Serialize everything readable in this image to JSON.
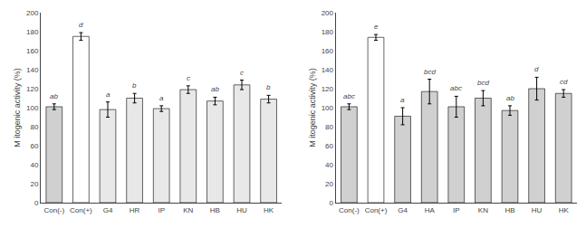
{
  "chart_data": [
    {
      "type": "bar",
      "categories": [
        "Con(-)",
        "Con(+)",
        "G4",
        "HR",
        "IP",
        "KN",
        "HB",
        "HU",
        "HK"
      ],
      "values": [
        101,
        175,
        98,
        110,
        99,
        119,
        107,
        124,
        109
      ],
      "errors": [
        3,
        4,
        8,
        5,
        3,
        4,
        4,
        5,
        4
      ],
      "annotations": [
        {
          "category": "Con(-)",
          "text": "ab"
        },
        {
          "category": "Con(+)",
          "text": "d"
        },
        {
          "category": "G4",
          "text": "a"
        },
        {
          "category": "HR",
          "text": "b"
        },
        {
          "category": "IP",
          "text": "a"
        },
        {
          "category": "KN",
          "text": "c"
        },
        {
          "category": "HB",
          "text": "ab"
        },
        {
          "category": "HU",
          "text": "c"
        },
        {
          "category": "HK",
          "text": "b"
        }
      ],
      "colors": [
        "#d0d0d0",
        "#ffffff",
        "#e8e8e8",
        "#e8e8e8",
        "#e8e8e8",
        "#e8e8e8",
        "#e8e8e8",
        "#e8e8e8",
        "#e8e8e8"
      ],
      "ylabel": "M itogenic activity (%)",
      "ylim": [
        0,
        200
      ],
      "yticks": [
        0,
        20,
        40,
        60,
        80,
        100,
        120,
        140,
        160,
        180,
        200
      ],
      "grid": false
    },
    {
      "type": "bar",
      "categories": [
        "Con(-)",
        "Con(+)",
        "G4",
        "HA",
        "IP",
        "KN",
        "HB",
        "HU",
        "HK"
      ],
      "values": [
        101,
        174,
        91,
        117,
        101,
        110,
        97,
        120,
        115
      ],
      "errors": [
        3,
        3,
        9,
        13,
        11,
        8,
        5,
        12,
        4
      ],
      "annotations": [
        {
          "category": "Con(-)",
          "text": "abc"
        },
        {
          "category": "Con(+)",
          "text": "e"
        },
        {
          "category": "G4",
          "text": "a"
        },
        {
          "category": "HA",
          "text": "bcd"
        },
        {
          "category": "IP",
          "text": "abc"
        },
        {
          "category": "KN",
          "text": "bcd"
        },
        {
          "category": "HB",
          "text": "ab"
        },
        {
          "category": "HU",
          "text": "d"
        },
        {
          "category": "HK",
          "text": "cd"
        }
      ],
      "colors": [
        "#d0d0d0",
        "#ffffff",
        "#d0d0d0",
        "#d0d0d0",
        "#d0d0d0",
        "#d0d0d0",
        "#d0d0d0",
        "#d0d0d0",
        "#d0d0d0"
      ],
      "ylabel": "M itogenic activity (%)",
      "ylim": [
        0,
        200
      ],
      "yticks": [
        0,
        20,
        40,
        60,
        80,
        100,
        120,
        140,
        160,
        180,
        200
      ],
      "grid": false
    }
  ]
}
